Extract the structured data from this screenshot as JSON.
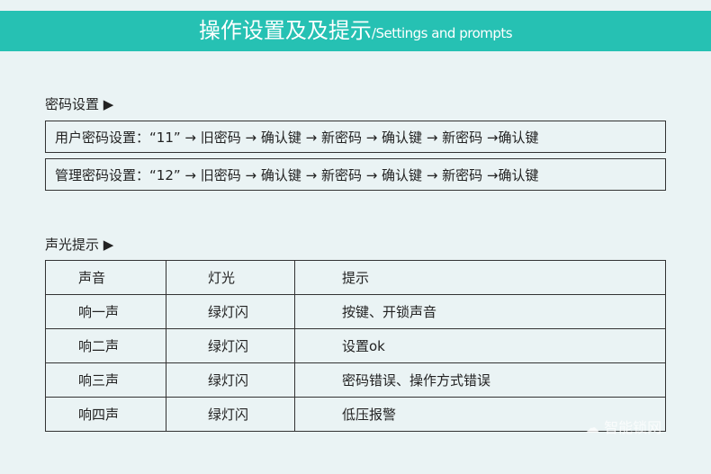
{
  "header": {
    "title_zh": "操作设置及及提示",
    "title_en": "/Settings and prompts",
    "color": "#26c1b3"
  },
  "password": {
    "label": "密码设置 ▶",
    "rows": [
      "用户密码设置：“11” → 旧密码  → 确认键  → 新密码 → 确认键 → 新密码 →确认键",
      "管理密码设置：“12” → 旧密码  → 确认键  → 新密码 → 确认键 → 新密码 →确认键"
    ]
  },
  "prompts": {
    "label": "声光提示 ▶",
    "headers": [
      "声音",
      "灯光",
      "提示"
    ],
    "rows": [
      [
        "响一声",
        "绿灯闪",
        "按键、开锁声音"
      ],
      [
        "响二声",
        "绿灯闪",
        "设置ok"
      ],
      [
        "响三声",
        "绿灯闪",
        "密码错误、操作方式错误"
      ],
      [
        "响四声",
        "绿灯闪",
        "低压报警"
      ]
    ]
  },
  "watermark": "智能锁网"
}
